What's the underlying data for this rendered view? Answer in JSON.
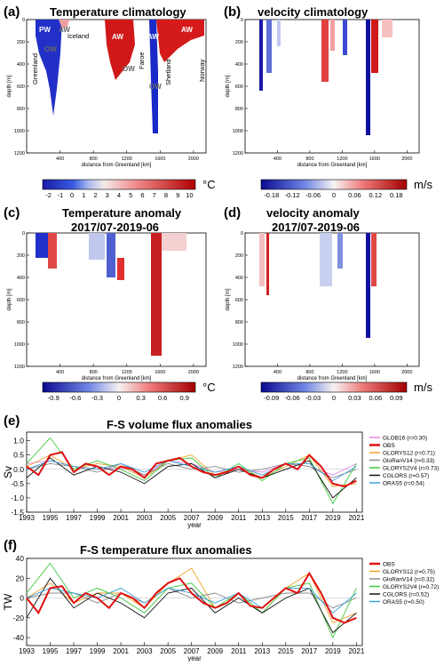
{
  "panels": {
    "a": {
      "letter": "(a)",
      "title": "Temperature climatology",
      "labels": [
        "PW",
        "AW",
        "OW",
        "Iceland",
        "Greenland",
        "AW",
        "Faroe",
        "AW",
        "OW",
        "Shetland",
        "AW",
        "Norway",
        "OW"
      ],
      "colorbar": {
        "ticks": [
          "-2",
          "-1",
          "0",
          "1",
          "2",
          "3",
          "4",
          "5",
          "6",
          "7",
          "8",
          "9",
          "10"
        ],
        "unit": "°C"
      }
    },
    "b": {
      "letter": "(b)",
      "title": "velocity climatology",
      "colorbar": {
        "ticks": [
          "-0.18",
          "-0.12",
          "-0.06",
          "0",
          "0.06",
          "0.12",
          "0.18"
        ],
        "unit": "m/s"
      }
    },
    "c": {
      "letter": "(c)",
      "title": "Temperature anomaly",
      "subtitle": "2017/07-2019-06",
      "colorbar": {
        "ticks": [
          "-0.9",
          "-0.6",
          "-0.3",
          "0",
          "0.3",
          "0.6",
          "0.9"
        ],
        "unit": "°C"
      }
    },
    "d": {
      "letter": "(d)",
      "title": "velocity anomaly",
      "subtitle": "2017/07-2019-06",
      "colorbar": {
        "ticks": [
          "-0.09",
          "-0.06",
          "-0.03",
          "0",
          "0.03",
          "0.06",
          "0.09"
        ],
        "unit": "m/s"
      }
    },
    "e": {
      "letter": "(e)",
      "title": "F-S volume flux anomalies"
    },
    "f": {
      "letter": "(f)",
      "title": "F-S temperature flux anomalies"
    }
  },
  "section_axes": {
    "xlabel": "distance from Greenland [km]",
    "ylabel": "depth [m]",
    "xticks": [
      "400",
      "800",
      "1200",
      "1600",
      "2000"
    ],
    "yticks": [
      "0",
      "200",
      "400",
      "600",
      "800",
      "1000",
      "1200"
    ]
  },
  "chart_data": [
    {
      "type": "line",
      "title": "F-S volume flux anomalies",
      "xlabel": "year",
      "ylabel": "Sv",
      "xlim": [
        1993,
        2021.5
      ],
      "ylim": [
        -1.5,
        1.3
      ],
      "yticks": [
        "1.0",
        "0.5",
        "0.0",
        "-0.5",
        "-1.0",
        "-1.5"
      ],
      "xticks": [
        "1993",
        "1995",
        "1997",
        "1999",
        "2001",
        "2003",
        "2005",
        "2007",
        "2009",
        "2011",
        "2013",
        "2015",
        "2017",
        "2019",
        "2021"
      ],
      "legend_position": "right",
      "series": [
        {
          "name": "GLOB16 (r=0.30)",
          "color": "#e589e5",
          "years": [
            1993,
            1995,
            1997,
            1999,
            2001,
            2003,
            2005,
            2007,
            2009,
            2011,
            2013,
            2015,
            2017,
            2019,
            2021
          ],
          "values": [
            0.2,
            0.3,
            0.1,
            0.0,
            0.05,
            -0.2,
            0.3,
            0.2,
            -0.1,
            0.0,
            -0.1,
            0.2,
            0.1,
            -0.2,
            0.2
          ]
        },
        {
          "name": "OBS",
          "color": "#e01010",
          "years": [
            1993,
            1994,
            1995,
            1996,
            1997,
            1998,
            1999,
            2000,
            2001,
            2002,
            2003,
            2004,
            2005,
            2006,
            2007,
            2008,
            2009,
            2010,
            2011,
            2012,
            2013,
            2014,
            2015,
            2016,
            2017,
            2018,
            2019,
            2020,
            2021
          ],
          "values": [
            0.1,
            -0.2,
            0.5,
            0.6,
            -0.1,
            0.2,
            0.1,
            -0.2,
            0.1,
            0.0,
            -0.3,
            0.2,
            0.3,
            0.4,
            0.1,
            -0.1,
            -0.2,
            -0.1,
            0.1,
            -0.2,
            -0.3,
            0.0,
            0.2,
            0.0,
            0.5,
            0.1,
            -0.5,
            -0.6,
            -0.4
          ]
        },
        {
          "name": "GLORYS12 (r=0.71)",
          "color": "#f0a32a",
          "years": [
            1993,
            1995,
            1997,
            1999,
            2001,
            2003,
            2005,
            2007,
            2009,
            2011,
            2013,
            2015,
            2017,
            2019,
            2021
          ],
          "values": [
            0.1,
            0.5,
            0.0,
            0.2,
            0.1,
            -0.3,
            0.3,
            0.5,
            -0.2,
            0.1,
            -0.3,
            0.1,
            0.5,
            -0.6,
            -0.5
          ]
        },
        {
          "name": "GloRanV14 (r=0.33)",
          "color": "#8c8c8c",
          "years": [
            1993,
            1995,
            1997,
            1999,
            2001,
            2003,
            2005,
            2007,
            2009,
            2011,
            2013,
            2015,
            2017,
            2019,
            2021
          ],
          "values": [
            0.0,
            0.2,
            0.1,
            -0.1,
            0.2,
            -0.2,
            0.2,
            0.0,
            0.1,
            -0.1,
            0.0,
            0.2,
            0.1,
            -0.3,
            0.0
          ]
        },
        {
          "name": "GLORYS2V4 (r=0.73)",
          "color": "#3cc83c",
          "years": [
            1993,
            1995,
            1997,
            1999,
            2001,
            2003,
            2005,
            2007,
            2009,
            2011,
            2013,
            2015,
            2017,
            2019,
            2021
          ],
          "values": [
            0.2,
            1.1,
            0.0,
            0.3,
            0.0,
            -0.4,
            0.3,
            0.4,
            -0.3,
            0.2,
            -0.4,
            0.2,
            0.4,
            -1.2,
            0.2
          ]
        },
        {
          "name": "CGLORS (r=0.57)",
          "color": "#111111",
          "years": [
            1993,
            1995,
            1997,
            1999,
            2001,
            2003,
            2005,
            2007,
            2009,
            2011,
            2013,
            2015,
            2017,
            2019,
            2021
          ],
          "values": [
            -0.3,
            0.4,
            -0.2,
            0.1,
            -0.1,
            -0.5,
            0.1,
            0.2,
            -0.3,
            0.0,
            -0.3,
            0.0,
            0.3,
            -1.0,
            -0.3
          ]
        },
        {
          "name": "ORAS5 (r=0.54)",
          "color": "#3aa0d8",
          "years": [
            1993,
            1995,
            1997,
            1999,
            2001,
            2003,
            2005,
            2007,
            2009,
            2011,
            2013,
            2015,
            2017,
            2019,
            2021
          ],
          "values": [
            0.0,
            0.3,
            0.1,
            0.0,
            0.2,
            -0.1,
            0.3,
            0.1,
            -0.1,
            0.1,
            -0.2,
            0.2,
            0.2,
            -0.4,
            0.1
          ]
        }
      ]
    },
    {
      "type": "line",
      "title": "F-S temperature flux anomalies",
      "xlabel": "year",
      "ylabel": "TW",
      "xlim": [
        1993,
        2021.5
      ],
      "ylim": [
        -48,
        40
      ],
      "yticks": [
        "40",
        "20",
        "0",
        "-20",
        "-40"
      ],
      "xticks": [
        "1993",
        "1995",
        "1997",
        "1999",
        "2001",
        "2003",
        "2005",
        "2007",
        "2009",
        "2011",
        "2013",
        "2015",
        "2017",
        "2019",
        "2021"
      ],
      "legend_position": "right",
      "series": [
        {
          "name": "OBS",
          "color": "#e01010",
          "years": [
            1993,
            1994,
            1995,
            1996,
            1997,
            1998,
            1999,
            2000,
            2001,
            2002,
            2003,
            2004,
            2005,
            2006,
            2007,
            2008,
            2009,
            2010,
            2011,
            2012,
            2013,
            2014,
            2015,
            2016,
            2017,
            2018,
            2019,
            2020,
            2021
          ],
          "values": [
            0,
            -15,
            10,
            12,
            -5,
            5,
            0,
            -10,
            5,
            0,
            -10,
            5,
            15,
            20,
            5,
            -5,
            -10,
            -5,
            5,
            -8,
            -10,
            0,
            10,
            5,
            25,
            5,
            -20,
            -25,
            -20
          ]
        },
        {
          "name": "GLORYS12 (r=0.75)",
          "color": "#f0a32a",
          "years": [
            1993,
            1995,
            1997,
            1999,
            2001,
            2003,
            2005,
            2007,
            2009,
            2011,
            2013,
            2015,
            2017,
            2019,
            2021
          ],
          "values": [
            0,
            15,
            -5,
            5,
            5,
            -10,
            15,
            30,
            -10,
            5,
            -15,
            10,
            25,
            -25,
            -15
          ]
        },
        {
          "name": "GloRanV14 (r=0.32)",
          "color": "#8c8c8c",
          "years": [
            1993,
            1995,
            1997,
            1999,
            2001,
            2003,
            2005,
            2007,
            2009,
            2011,
            2013,
            2015,
            2017,
            2019,
            2021
          ],
          "values": [
            0,
            5,
            5,
            -5,
            5,
            -5,
            10,
            0,
            5,
            -5,
            0,
            5,
            5,
            -10,
            0
          ]
        },
        {
          "name": "GLORYS2V4 (r=0.72)",
          "color": "#3cc83c",
          "years": [
            1993,
            1995,
            1997,
            1999,
            2001,
            2003,
            2005,
            2007,
            2009,
            2011,
            2013,
            2015,
            2017,
            2019,
            2021
          ],
          "values": [
            5,
            35,
            0,
            10,
            0,
            -15,
            10,
            15,
            -10,
            5,
            -15,
            10,
            15,
            -40,
            10
          ]
        },
        {
          "name": "CGLORS (r=0.52)",
          "color": "#111111",
          "years": [
            1993,
            1995,
            1997,
            1999,
            2001,
            2003,
            2005,
            2007,
            2009,
            2011,
            2013,
            2015,
            2017,
            2019,
            2021
          ],
          "values": [
            -20,
            20,
            -10,
            5,
            -5,
            -20,
            5,
            10,
            -15,
            0,
            -15,
            0,
            10,
            -35,
            -15
          ]
        },
        {
          "name": "ORAS5 (r=0.50)",
          "color": "#3aa0d8",
          "years": [
            1993,
            1995,
            1997,
            1999,
            2001,
            2003,
            2005,
            2007,
            2009,
            2011,
            2013,
            2015,
            2017,
            2019,
            2021
          ],
          "values": [
            0,
            10,
            5,
            0,
            10,
            -5,
            10,
            5,
            -5,
            5,
            -10,
            10,
            10,
            -15,
            5
          ]
        }
      ]
    }
  ]
}
